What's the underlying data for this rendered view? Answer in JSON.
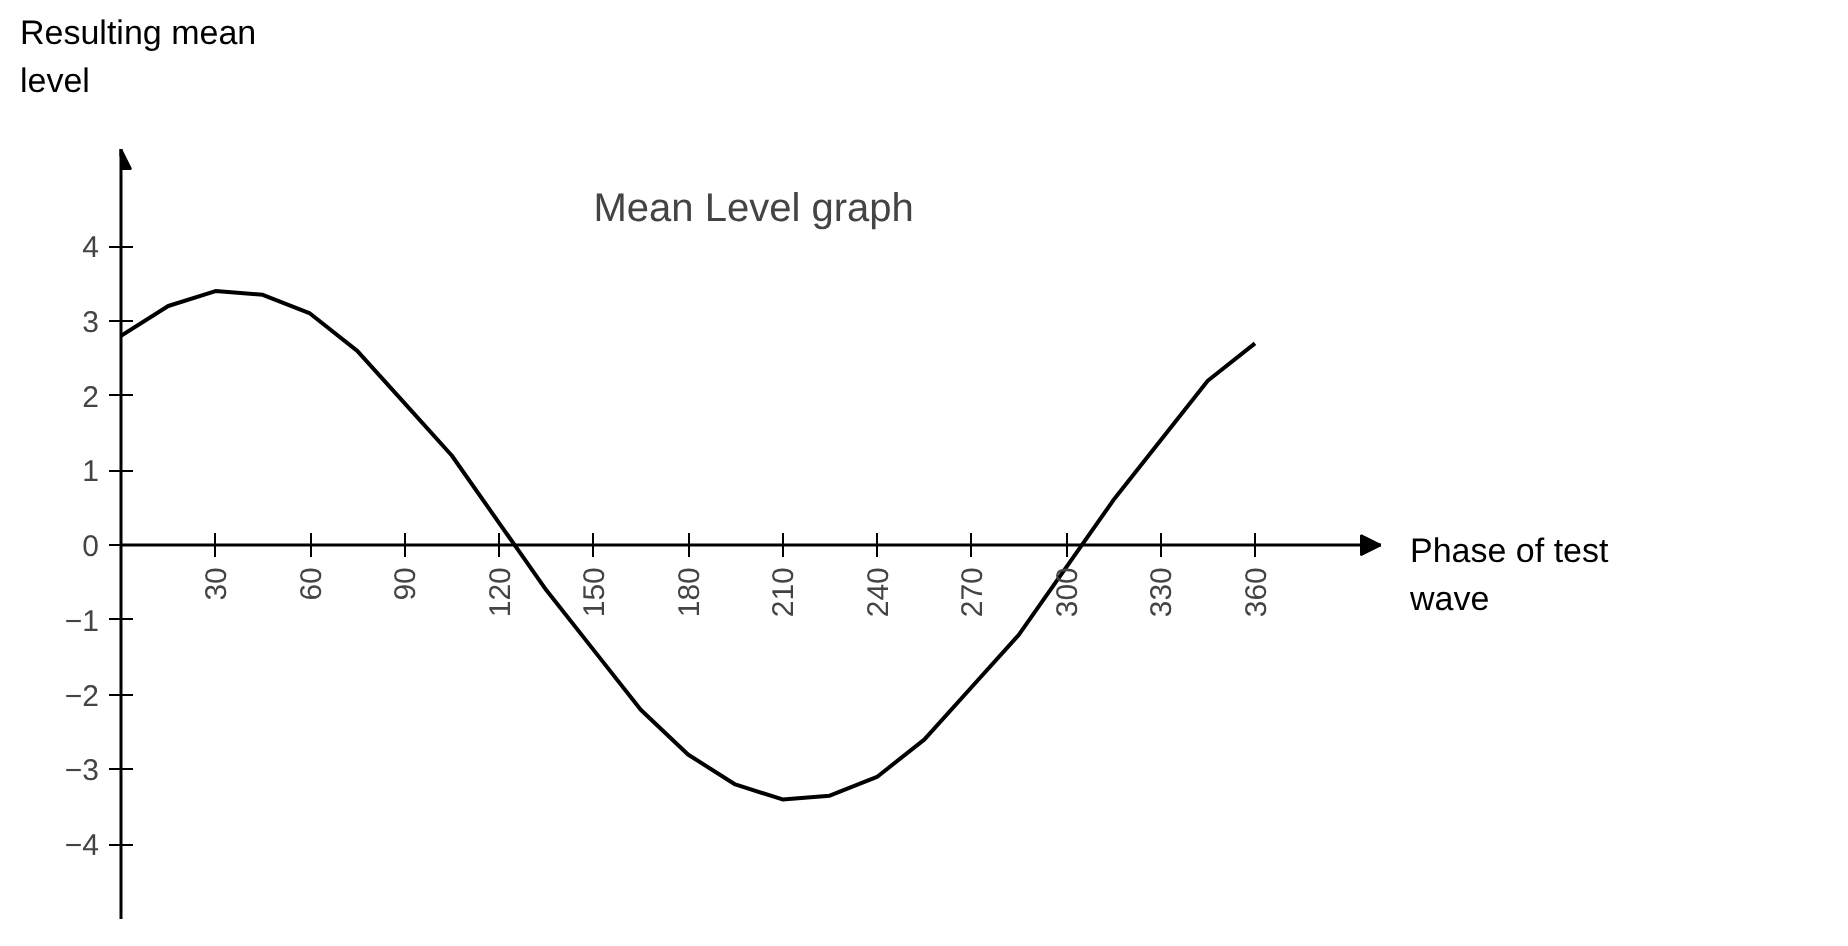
{
  "chart_data": {
    "type": "line",
    "title": "Mean Level graph",
    "xlabel": "Phase of test wave",
    "ylabel": "Resulting mean level",
    "x": [
      0,
      15,
      30,
      45,
      60,
      75,
      90,
      105,
      120,
      135,
      150,
      165,
      180,
      195,
      210,
      225,
      240,
      255,
      270,
      285,
      300,
      315,
      330,
      345,
      360
    ],
    "series": [
      {
        "color": "#000000",
        "values": [
          2.8,
          3.2,
          3.4,
          3.35,
          3.1,
          2.6,
          1.9,
          1.2,
          0.3,
          -0.6,
          -1.4,
          -2.2,
          -2.8,
          -3.2,
          -3.4,
          -3.35,
          -3.1,
          -2.6,
          -1.9,
          -1.2,
          -0.3,
          0.6,
          1.4,
          2.2,
          2.7
        ]
      }
    ],
    "xlim": [
      0,
      400
    ],
    "ylim": [
      -5,
      5.3
    ],
    "xticks": [
      30,
      60,
      90,
      120,
      150,
      180,
      210,
      240,
      270,
      300,
      330,
      360
    ],
    "yticks": [
      -4,
      -3,
      -2,
      -1,
      0,
      1,
      2,
      3,
      4
    ],
    "grid": false,
    "marker": "none",
    "line_style": "solid"
  }
}
